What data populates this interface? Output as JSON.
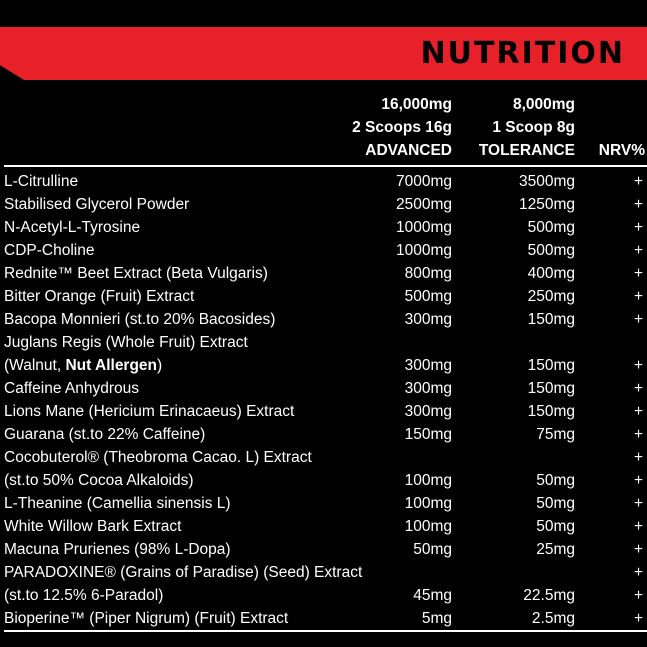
{
  "banner": {
    "title": "NUTRITION"
  },
  "columns": {
    "advanced": {
      "line1": "16,000mg",
      "line2": "2 Scoops 16g",
      "line3": "ADVANCED"
    },
    "tolerance": {
      "line1": "8,000mg",
      "line2": "1 Scoop 8g",
      "line3": "TOLERANCE"
    },
    "nrv": {
      "label": "NRV%"
    }
  },
  "rows": [
    {
      "name": "L-Citrulline",
      "advanced": "7000mg",
      "tolerance": "3500mg",
      "nrv": "+"
    },
    {
      "name": "Stabilised Glycerol Powder",
      "advanced": "2500mg",
      "tolerance": "1250mg",
      "nrv": "+"
    },
    {
      "name": "N-Acetyl-L-Tyrosine",
      "advanced": "1000mg",
      "tolerance": "500mg",
      "nrv": "+"
    },
    {
      "name": "CDP-Choline",
      "advanced": "1000mg",
      "tolerance": "500mg",
      "nrv": "+"
    },
    {
      "name": "Rednite™ Beet Extract (Beta Vulgaris)",
      "advanced": "800mg",
      "tolerance": "400mg",
      "nrv": "+"
    },
    {
      "name": "Bitter Orange (Fruit) Extract",
      "advanced": "500mg",
      "tolerance": "250mg",
      "nrv": "+"
    },
    {
      "name": "Bacopa Monnieri (st.to 20% Bacosides)",
      "advanced": "300mg",
      "tolerance": "150mg",
      "nrv": "+"
    },
    {
      "name": "Juglans Regis (Whole Fruit) Extract",
      "advanced": "",
      "tolerance": "",
      "nrv": ""
    },
    {
      "name_pre": "(Walnut, ",
      "name_bold": "Nut Allergen",
      "name_post": ")",
      "advanced": "300mg",
      "tolerance": "150mg",
      "nrv": "+"
    },
    {
      "name": "Caffeine Anhydrous",
      "advanced": "300mg",
      "tolerance": "150mg",
      "nrv": "+"
    },
    {
      "name": "Lions Mane (Hericium Erinacaeus) Extract",
      "advanced": "300mg",
      "tolerance": "150mg",
      "nrv": "+"
    },
    {
      "name": "Guarana (st.to 22% Caffeine)",
      "advanced": "150mg",
      "tolerance": "75mg",
      "nrv": "+"
    },
    {
      "name": "Cocobuterol® (Theobroma Cacao. L) Extract",
      "advanced": "",
      "tolerance": "",
      "nrv": "+"
    },
    {
      "name": "(st.to 50% Cocoa Alkaloids)",
      "advanced": "100mg",
      "tolerance": "50mg",
      "nrv": "+"
    },
    {
      "name": "L-Theanine (Camellia sinensis L)",
      "advanced": "100mg",
      "tolerance": "50mg",
      "nrv": "+"
    },
    {
      "name": "White Willow Bark Extract",
      "advanced": "100mg",
      "tolerance": "50mg",
      "nrv": "+"
    },
    {
      "name": "Macuna Prurienes (98% L-Dopa)",
      "advanced": "50mg",
      "tolerance": "25mg",
      "nrv": "+"
    },
    {
      "name": "PARADOXINE® (Grains of Paradise) (Seed) Extract",
      "advanced": "",
      "tolerance": "",
      "nrv": "+"
    },
    {
      "name": "(st.to 12.5% 6-Paradol)",
      "advanced": "45mg",
      "tolerance": "22.5mg",
      "nrv": "+"
    },
    {
      "name": "Bioperine™ (Piper Nigrum) (Fruit) Extract",
      "advanced": "5mg",
      "tolerance": "2.5mg",
      "nrv": "+"
    }
  ],
  "colors": {
    "accent": "#e8202a",
    "background": "#000000",
    "text": "#ffffff"
  }
}
